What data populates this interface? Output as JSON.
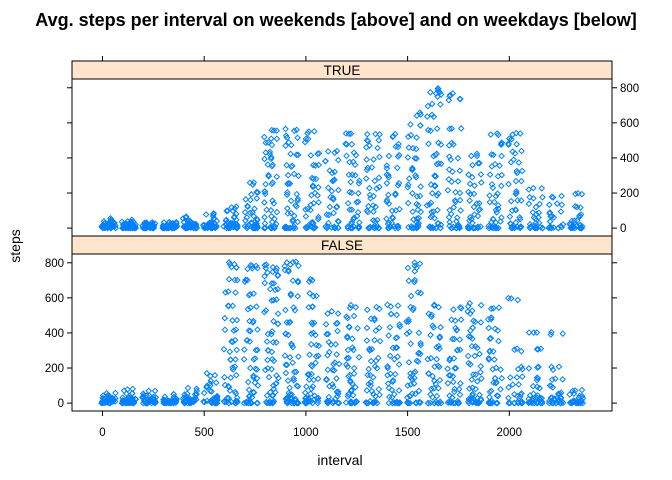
{
  "chart_data": {
    "type": "scatter",
    "title": "Avg. steps per interval on weekends [above] and on weekdays [below]",
    "xlabel": "interval",
    "ylabel": "steps",
    "xlim": [
      -150,
      2505
    ],
    "ylim": [
      -45,
      850
    ],
    "x_ticks": [
      0,
      500,
      1000,
      1500,
      2000
    ],
    "y_ticks": [
      0,
      200,
      400,
      600,
      800
    ],
    "marker_color": "#0080ff",
    "strip_color": "#ffe5cc",
    "panels": [
      {
        "name": "TRUE",
        "y_axis_side": "right",
        "series": [
          {
            "x": 0,
            "y": [
              45,
              30,
              20,
              15,
              10,
              5,
              0
            ]
          },
          {
            "x": 100,
            "y": [
              40,
              25,
              15,
              10,
              5,
              0
            ]
          },
          {
            "x": 200,
            "y": [
              20,
              10,
              5,
              0
            ]
          },
          {
            "x": 300,
            "y": [
              30,
              20,
              10,
              5,
              0
            ]
          },
          {
            "x": 400,
            "y": [
              60,
              45,
              30,
              15,
              5,
              0
            ]
          },
          {
            "x": 500,
            "y": [
              80,
              60,
              40,
              20,
              10,
              0
            ]
          },
          {
            "x": 600,
            "y": [
              120,
              90,
              70,
              50,
              30,
              15,
              0
            ]
          },
          {
            "x": 700,
            "y": [
              250,
              200,
              160,
              120,
              90,
              60,
              40,
              20,
              0
            ]
          },
          {
            "x": 800,
            "y": [
              550,
              520,
              480,
              430,
              400,
              360,
              300,
              250,
              200,
              150,
              100,
              60,
              30,
              0
            ]
          },
          {
            "x": 900,
            "y": [
              560,
              520,
              480,
              420,
              360,
              300,
              250,
              200,
              160,
              120,
              80,
              40,
              0
            ]
          },
          {
            "x": 1000,
            "y": [
              550,
              500,
              420,
              350,
              290,
              240,
              190,
              140,
              100,
              60,
              30,
              0
            ]
          },
          {
            "x": 1100,
            "y": [
              440,
              380,
              320,
              270,
              220,
              170,
              120,
              80,
              40,
              0
            ]
          },
          {
            "x": 1200,
            "y": [
              530,
              480,
              420,
              370,
              310,
              260,
              200,
              150,
              100,
              60,
              30,
              0
            ]
          },
          {
            "x": 1300,
            "y": [
              540,
              500,
              460,
              400,
              340,
              280,
              230,
              180,
              130,
              90,
              50,
              0
            ]
          },
          {
            "x": 1400,
            "y": [
              530,
              470,
              410,
              350,
              300,
              250,
              200,
              150,
              100,
              60,
              30,
              0
            ]
          },
          {
            "x": 1500,
            "y": [
              650,
              580,
              520,
              460,
              400,
              340,
              290,
              240,
              190,
              140,
              100,
              60,
              30,
              0
            ]
          },
          {
            "x": 1600,
            "y": [
              790,
              780,
              760,
              700,
              640,
              560,
              480,
              420,
              360,
              300,
              240,
              190,
              140,
              100,
              60,
              30,
              0
            ]
          },
          {
            "x": 1700,
            "y": [
              760,
              740,
              560,
              480,
              400,
              330,
              270,
              210,
              160,
              110,
              70,
              30,
              0
            ]
          },
          {
            "x": 1800,
            "y": [
              420,
              360,
              300,
              250,
              200,
              150,
              110,
              70,
              40,
              0
            ]
          },
          {
            "x": 1900,
            "y": [
              530,
              480,
              420,
              360,
              300,
              240,
              190,
              140,
              100,
              60,
              30,
              0
            ]
          },
          {
            "x": 2000,
            "y": [
              540,
              510,
              480,
              430,
              380,
              320,
              260,
              200,
              150,
              100,
              60,
              30,
              0
            ]
          },
          {
            "x": 2100,
            "y": [
              220,
              170,
              130,
              90,
              60,
              30,
              0
            ]
          },
          {
            "x": 2200,
            "y": [
              180,
              130,
              90,
              60,
              30,
              0
            ]
          },
          {
            "x": 2300,
            "y": [
              190,
              120,
              70,
              40,
              20,
              0
            ]
          }
        ]
      },
      {
        "name": "FALSE",
        "y_axis_side": "left",
        "series": [
          {
            "x": 0,
            "y": [
              50,
              35,
              20,
              10,
              0
            ]
          },
          {
            "x": 100,
            "y": [
              70,
              50,
              30,
              15,
              5,
              0
            ]
          },
          {
            "x": 200,
            "y": [
              60,
              40,
              25,
              10,
              0
            ]
          },
          {
            "x": 300,
            "y": [
              45,
              30,
              15,
              5,
              0
            ]
          },
          {
            "x": 400,
            "y": [
              80,
              60,
              40,
              20,
              10,
              0
            ]
          },
          {
            "x": 500,
            "y": [
              160,
              120,
              90,
              60,
              40,
              20,
              0
            ]
          },
          {
            "x": 600,
            "y": [
              800,
              780,
              700,
              640,
              560,
              480,
              410,
              350,
              300,
              250,
              200,
              150,
              100,
              60,
              30,
              0
            ]
          },
          {
            "x": 700,
            "y": [
              790,
              760,
              700,
              620,
              540,
              470,
              410,
              350,
              300,
              250,
              200,
              150,
              110,
              70,
              40,
              0
            ]
          },
          {
            "x": 800,
            "y": [
              780,
              760,
              740,
              720,
              690,
              640,
              590,
              520,
              460,
              400,
              340,
              290,
              240,
              190,
              150,
              110,
              70,
              40,
              0
            ]
          },
          {
            "x": 900,
            "y": [
              800,
              790,
              760,
              700,
              620,
              540,
              460,
              390,
              330,
              270,
              220,
              170,
              130,
              90,
              50,
              20,
              0
            ]
          },
          {
            "x": 1000,
            "y": [
              700,
              620,
              540,
              460,
              390,
              330,
              270,
              220,
              170,
              130,
              90,
              50,
              20,
              0
            ]
          },
          {
            "x": 1100,
            "y": [
              520,
              460,
              400,
              340,
              280,
              230,
              180,
              140,
              100,
              60,
              30,
              0
            ]
          },
          {
            "x": 1200,
            "y": [
              550,
              490,
              430,
              370,
              310,
              260,
              210,
              160,
              120,
              80,
              40,
              0
            ]
          },
          {
            "x": 1300,
            "y": [
              540,
              480,
              420,
              360,
              300,
              250,
              200,
              150,
              110,
              70,
              40,
              0
            ]
          },
          {
            "x": 1400,
            "y": [
              560,
              500,
              440,
              380,
              320,
              260,
              210,
              160,
              120,
              80,
              40,
              0
            ]
          },
          {
            "x": 1500,
            "y": [
              790,
              760,
              700,
              620,
              540,
              470,
              400,
              340,
              280,
              230,
              180,
              140,
              100,
              60,
              30,
              0
            ]
          },
          {
            "x": 1600,
            "y": [
              550,
              500,
              440,
              380,
              320,
              260,
              210,
              160,
              120,
              80,
              40,
              0
            ]
          },
          {
            "x": 1700,
            "y": [
              540,
              480,
              420,
              360,
              300,
              250,
              200,
              150,
              110,
              70,
              40,
              0
            ]
          },
          {
            "x": 1800,
            "y": [
              560,
              520,
              470,
              420,
              370,
              320,
              270,
              220,
              170,
              130,
              90,
              50,
              20,
              0
            ]
          },
          {
            "x": 1900,
            "y": [
              540,
              480,
              420,
              360,
              300,
              250,
              200,
              150,
              110,
              70,
              40,
              0
            ]
          },
          {
            "x": 2000,
            "y": [
              590,
              300,
              200,
              150,
              100,
              60,
              30,
              0
            ]
          },
          {
            "x": 2100,
            "y": [
              410,
              300,
              200,
              140,
              90,
              50,
              20,
              0
            ]
          },
          {
            "x": 2200,
            "y": [
              400,
              200,
              140,
              90,
              50,
              20,
              0
            ]
          },
          {
            "x": 2300,
            "y": [
              80,
              50,
              30,
              10,
              0
            ]
          }
        ]
      }
    ]
  }
}
